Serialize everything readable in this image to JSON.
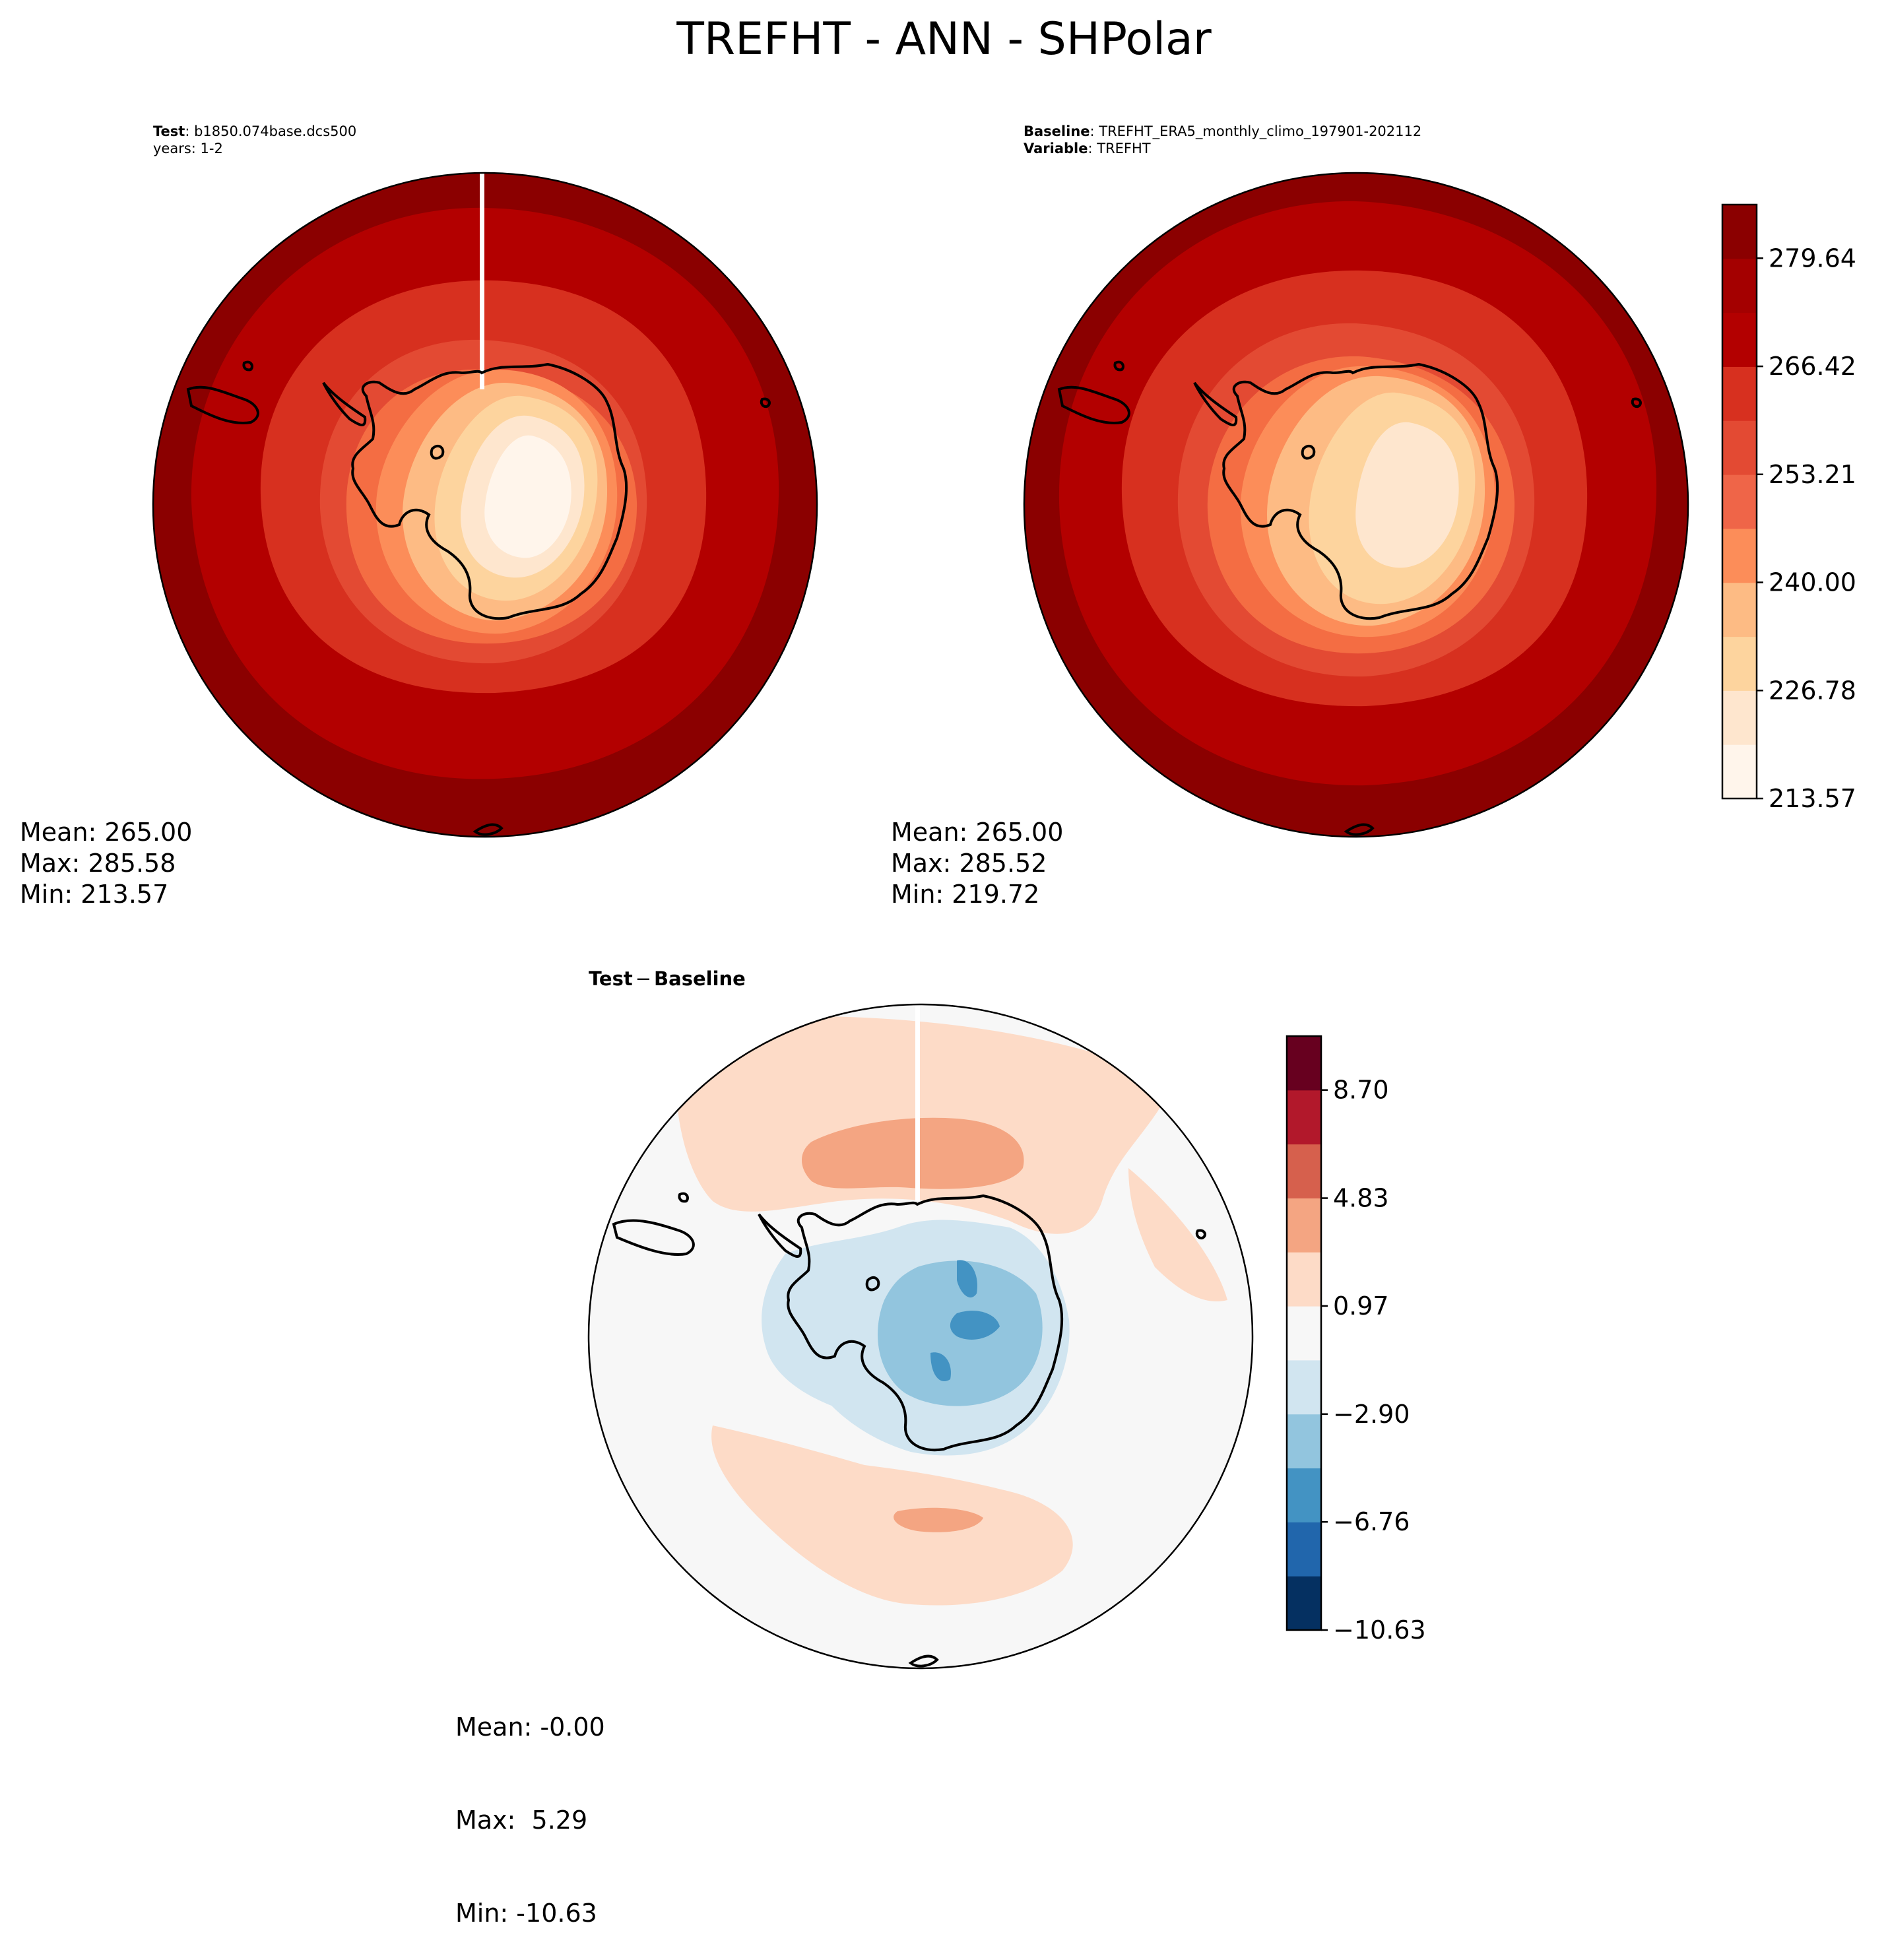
{
  "figure_title": "TREFHT - ANN - SHPolar",
  "chart_data": [
    {
      "type": "heatmap",
      "name": "test-panel",
      "projection": "south-polar-stereographic",
      "header_lines": [
        {
          "bold": "Test",
          "text": ": b1850.074base.dcs500"
        },
        {
          "bold": "",
          "text": "years: 1-2"
        }
      ],
      "stats": {
        "mean": "Mean: 265.00",
        "max": "Max: 285.58",
        "min": "Min: 213.57"
      },
      "colormap": "OrRd",
      "shares_colorbar_with": "baseline-panel",
      "field_summary": {
        "antarctic_interior": "lowest (~214-226)",
        "open_ocean": "highest (~275-286)"
      }
    },
    {
      "type": "heatmap",
      "name": "baseline-panel",
      "projection": "south-polar-stereographic",
      "header_lines": [
        {
          "bold": "Baseline",
          "text": ": TREFHT_ERA5_monthly_climo_197901-202112"
        },
        {
          "bold": "Variable",
          "text": ": TREFHT"
        }
      ],
      "stats": {
        "mean": "Mean: 265.00",
        "max": "Max: 285.52",
        "min": "Min: 219.72"
      },
      "colormap": "OrRd",
      "colorbar": {
        "ticks": [
          213.57,
          226.78,
          240.0,
          253.21,
          266.42,
          279.64
        ],
        "tick_labels": [
          "213.57",
          "226.78",
          "240.00",
          "253.21",
          "266.42",
          "279.64"
        ],
        "levels": 11,
        "range": [
          213.57,
          286.2
        ],
        "colors": [
          "#fff5eb",
          "#fee6ce",
          "#fdd49e",
          "#fdbb84",
          "#fc8d59",
          "#ef6548",
          "#e34a33",
          "#d7301f",
          "#b30000",
          "#a40000",
          "#8b0000"
        ]
      }
    },
    {
      "type": "heatmap",
      "name": "difference-panel",
      "projection": "south-polar-stereographic",
      "title_parts": {
        "bold_left": "Test",
        "minus": "−",
        "bold_right": "Baseline"
      },
      "stats": {
        "mean": "Mean: -0.00",
        "max": "Max:  5.29",
        "min": "Min: -10.63"
      },
      "colormap": "RdBu_r",
      "colorbar": {
        "ticks": [
          -10.63,
          -6.76,
          -2.9,
          0.97,
          4.83,
          8.7
        ],
        "tick_labels": [
          "−10.63",
          "−6.76",
          "−2.90",
          "0.97",
          "4.83",
          "8.70"
        ],
        "levels": 11,
        "range": [
          -10.63,
          10.63
        ],
        "colors": [
          "#053061",
          "#2166ac",
          "#4393c3",
          "#92c5de",
          "#d1e5f0",
          "#f7f7f7",
          "#fddbc7",
          "#f4a582",
          "#d6604d",
          "#b2182b",
          "#67001f"
        ]
      }
    }
  ]
}
